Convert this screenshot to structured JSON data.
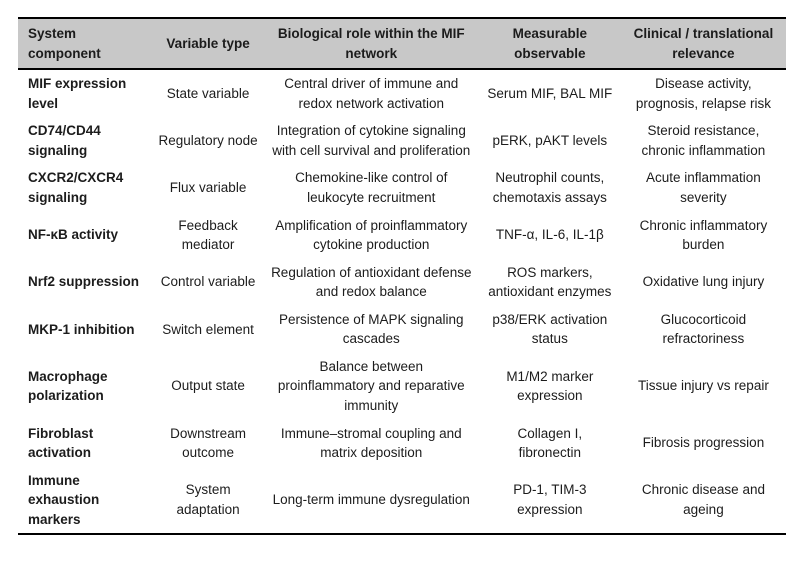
{
  "colors": {
    "header_bg": "#c8c8c8",
    "border": "#000000",
    "text": "#1c1c1c"
  },
  "table": {
    "columns": [
      "System component",
      "Variable type",
      "Biological role within the MIF network",
      "Measurable observable",
      "Clinical / translational relevance"
    ],
    "rows": [
      [
        "MIF expression level",
        "State variable",
        "Central driver of immune and redox network activation",
        "Serum MIF, BAL MIF",
        "Disease activity, prognosis, relapse risk"
      ],
      [
        "CD74/CD44 signaling",
        "Regulatory node",
        "Integration of cytokine signaling with cell survival and proliferation",
        "pERK, pAKT levels",
        "Steroid resistance, chronic inflammation"
      ],
      [
        "CXCR2/CXCR4 signaling",
        "Flux variable",
        "Chemokine-like control of leukocyte recruitment",
        "Neutrophil counts, chemotaxis assays",
        "Acute inflammation severity"
      ],
      [
        "NF-κB activity",
        "Feedback mediator",
        "Amplification of proinflammatory cytokine production",
        "TNF-α, IL-6, IL-1β",
        "Chronic inflammatory burden"
      ],
      [
        "Nrf2 suppression",
        "Control variable",
        "Regulation of antioxidant defense and redox balance",
        "ROS markers, antioxidant enzymes",
        "Oxidative lung injury"
      ],
      [
        "MKP-1 inhibition",
        "Switch element",
        "Persistence of MAPK signaling cascades",
        "p38/ERK activation status",
        "Glucocorticoid refractoriness"
      ],
      [
        "Macrophage polarization",
        "Output state",
        "Balance between proinflammatory and reparative immunity",
        "M1/M2 marker expression",
        "Tissue injury vs repair"
      ],
      [
        "Fibroblast activation",
        "Downstream outcome",
        "Immune–stromal coupling and matrix deposition",
        "Collagen I, fibronectin",
        "Fibrosis progression"
      ],
      [
        "Immune exhaustion markers",
        "System adaptation",
        "Long-term immune dysregulation",
        "PD-1, TIM-3 expression",
        "Chronic disease and ageing"
      ]
    ]
  }
}
